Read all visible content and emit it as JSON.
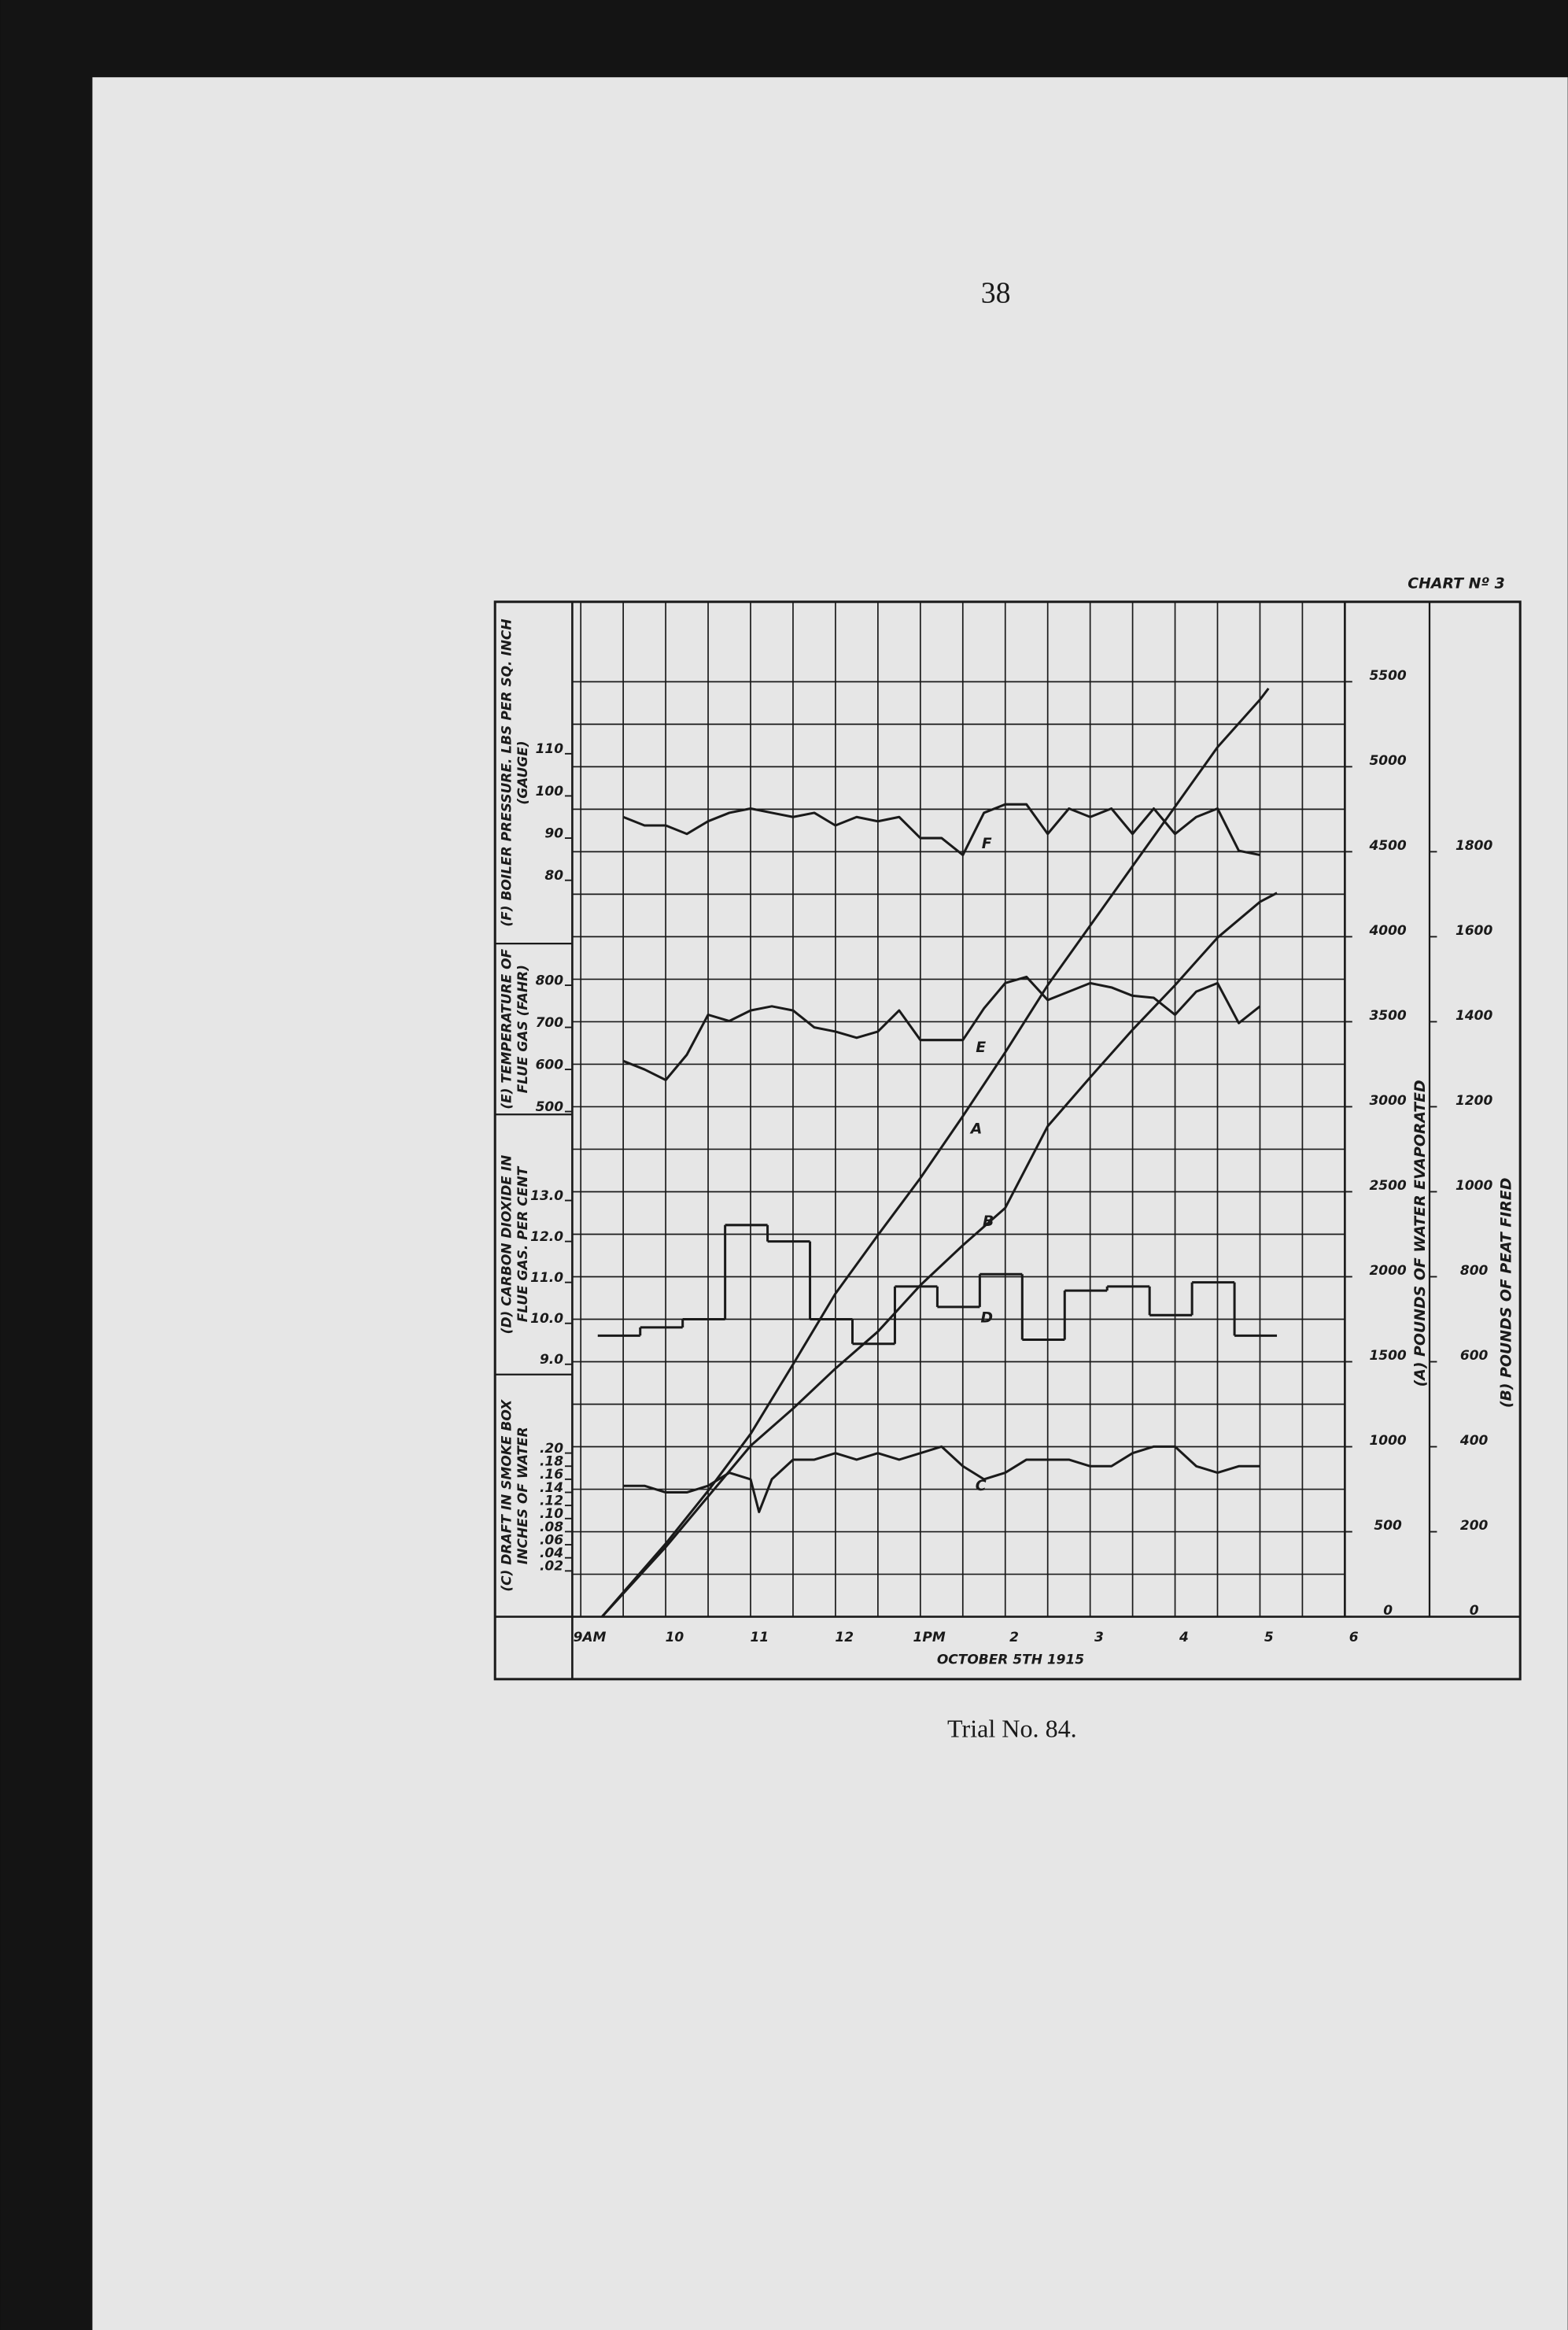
{
  "page_number": "38",
  "caption": "Trial No. 84.",
  "chart_data": {
    "type": "line",
    "title": "CHART Nº 3",
    "x_label": "OCTOBER 5TH 1915",
    "xlim": [
      8.9,
      18
    ],
    "xticks": [
      {
        "value": 9,
        "label": "9AM"
      },
      10,
      11,
      12,
      {
        "value": 13,
        "label": "1PM"
      },
      {
        "value": 14,
        "label": "2"
      },
      {
        "value": 15,
        "label": "3"
      },
      {
        "value": 16,
        "label": "4"
      },
      {
        "value": 17,
        "label": "5"
      },
      {
        "value": 18,
        "label": "6"
      }
    ],
    "panels": [
      {
        "ylabel": [
          "(F) BOILER PRESSURE. LBS PER SQ. INCH",
          "(GAUGE)"
        ],
        "ylim": [
          65,
          146
        ],
        "yticks": [
          80,
          90,
          100,
          110
        ],
        "series": [
          {
            "name": "F",
            "x": [
              9.5,
              9.75,
              10,
              10.25,
              10.5,
              10.75,
              11,
              11.25,
              11.5,
              11.75,
              12,
              12.25,
              12.5,
              12.75,
              13,
              13.25,
              13.5,
              13.75,
              14,
              14.25,
              14.5,
              14.75,
              15,
              15.25,
              15.5,
              15.75,
              16,
              16.25,
              16.5,
              16.75,
              17
            ],
            "values": [
              95,
              93,
              93,
              91,
              94,
              96,
              97,
              96,
              95,
              96,
              93,
              95,
              94,
              95,
              90,
              90,
              86,
              96,
              98,
              98,
              91,
              97,
              95,
              97,
              91,
              97,
              91,
              95,
              97,
              87,
              86
            ]
          }
        ]
      },
      {
        "ylabel": [
          "(E) TEMPERATURE OF",
          "FLUE GAS (FAHR)"
        ],
        "ylim": [
          493,
          899
        ],
        "yticks": [
          500,
          600,
          700,
          800
        ],
        "series": [
          {
            "name": "E",
            "x": [
              9.5,
              9.75,
              10,
              10.25,
              10.5,
              10.75,
              11,
              11.25,
              11.5,
              11.75,
              12,
              12.25,
              12.5,
              12.75,
              13,
              13.25,
              13.5,
              13.75,
              14,
              14.25,
              14.5,
              14.75,
              15,
              15.25,
              15.5,
              15.75,
              16,
              16.25,
              16.5,
              16.75,
              17
            ],
            "values": [
              620,
              600,
              575,
              635,
              730,
              715,
              740,
              750,
              740,
              700,
              690,
              675,
              690,
              740,
              670,
              670,
              670,
              745,
              805,
              820,
              765,
              785,
              805,
              795,
              775,
              770,
              730,
              785,
              805,
              710,
              750
            ]
          }
        ]
      },
      {
        "ylabel": [
          "(D) CARBON DIOXIDE IN",
          "FLUE GAS. PER CENT"
        ],
        "ylim": [
          8.75,
          15.1
        ],
        "yticks": [
          {
            "value": 9,
            "label": "9.0"
          },
          {
            "value": 10,
            "label": "10.0"
          },
          {
            "value": 11,
            "label": "11.0"
          },
          {
            "value": 12,
            "label": "12.0"
          },
          {
            "value": 13,
            "label": "13.0"
          }
        ],
        "series": [
          {
            "name": "D",
            "step": true,
            "x": [
              9.2,
              9.7,
              10.2,
              10.7,
              11.2,
              11.7,
              12.2,
              12.7,
              13.2,
              13.7,
              14.2,
              14.7,
              15.2,
              15.7,
              16.2,
              16.7
            ],
            "x_end": 17.2,
            "values": [
              9.7,
              9.9,
              10.1,
              12.4,
              12.0,
              10.1,
              9.5,
              10.9,
              10.4,
              11.2,
              9.6,
              10.8,
              10.9,
              10.2,
              11.0,
              9.7
            ]
          }
        ]
      },
      {
        "ylabel": [
          "(C) DRAFT IN SMOKE BOX",
          "INCHES OF WATER"
        ],
        "ylim": [
          -0.05,
          0.32
        ],
        "yticks": [
          {
            "value": 0.02,
            "label": ".02"
          },
          {
            "value": 0.04,
            "label": ".04"
          },
          {
            "value": 0.06,
            "label": ".06"
          },
          {
            "value": 0.08,
            "label": ".08"
          },
          {
            "value": 0.1,
            "label": ".10"
          },
          {
            "value": 0.12,
            "label": ".12"
          },
          {
            "value": 0.14,
            "label": ".14"
          },
          {
            "value": 0.16,
            "label": ".16"
          },
          {
            "value": 0.18,
            "label": ".18"
          },
          {
            "value": 0.2,
            "label": ".20"
          }
        ],
        "series": [
          {
            "name": "C",
            "x": [
              9.5,
              9.75,
              10,
              10.25,
              10.5,
              10.75,
              11,
              11.1,
              11.25,
              11.5,
              11.75,
              12,
              12.25,
              12.5,
              12.75,
              13,
              13.25,
              13.5,
              13.75,
              14,
              14.25,
              14.5,
              14.75,
              15,
              15.25,
              15.5,
              15.75,
              16,
              16.25,
              16.5,
              16.75,
              17
            ],
            "values": [
              0.15,
              0.15,
              0.14,
              0.14,
              0.15,
              0.17,
              0.16,
              0.11,
              0.16,
              0.19,
              0.19,
              0.2,
              0.19,
              0.2,
              0.19,
              0.2,
              0.21,
              0.18,
              0.16,
              0.17,
              0.19,
              0.19,
              0.19,
              0.18,
              0.18,
              0.2,
              0.21,
              0.21,
              0.18,
              0.17,
              0.18,
              0.18
            ]
          }
        ]
      }
    ],
    "right_axes": [
      {
        "label": "(A) POUNDS OF WATER EVAPORATED",
        "ylim": [
          0,
          5970
        ],
        "yticks": [
          0,
          500,
          1000,
          1500,
          2000,
          2500,
          3000,
          3500,
          4000,
          4500,
          5000,
          5500
        ],
        "series": [
          {
            "name": "A",
            "x": [
              9.25,
              10,
              10.5,
              11,
              11.5,
              12,
              12.5,
              13,
              13.5,
              14,
              14.5,
              15,
              15.5,
              16,
              16.5,
              17,
              17.1
            ],
            "values": [
              0,
              430,
              740,
              1075,
              1485,
              1900,
              2245,
              2580,
              2945,
              3320,
              3715,
              4065,
              4415,
              4765,
              5115,
              5395,
              5460
            ]
          }
        ]
      },
      {
        "label": "(B) POUNDS OF PEAT FIRED",
        "ylim": [
          0,
          2388
        ],
        "yticks": [
          0,
          200,
          400,
          600,
          800,
          1000,
          1200,
          1400,
          1600,
          1800
        ],
        "series": [
          {
            "name": "B",
            "x": [
              9.25,
              10,
              10.5,
              11,
              11.5,
              12,
              12.5,
              13,
              13.5,
              14,
              14.5,
              15,
              15.5,
              16,
              16.5,
              17,
              17.2
            ],
            "values": [
              0,
              164,
              283,
              402,
              490,
              584,
              671,
              780,
              874,
              962,
              1154,
              1269,
              1381,
              1486,
              1598,
              1682,
              1703
            ]
          }
        ]
      }
    ]
  }
}
